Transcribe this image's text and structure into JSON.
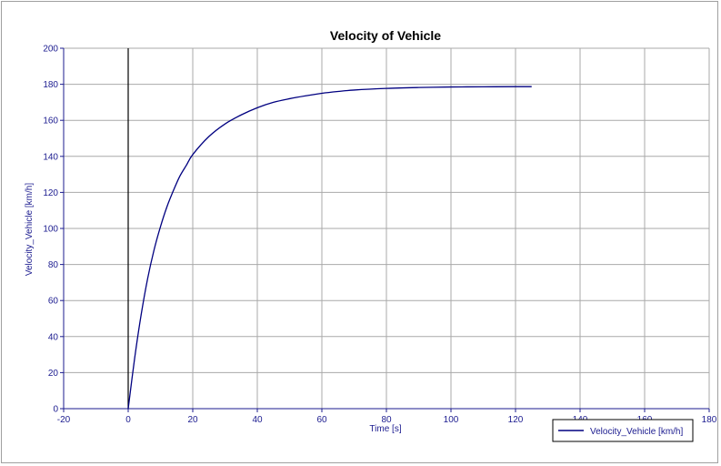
{
  "chart_data": {
    "type": "line",
    "title": "Velocity of Vehicle",
    "xlabel": "Time [s]",
    "ylabel": "Velocity_Vehicle [km/h]",
    "xlim": [
      -20,
      180
    ],
    "ylim": [
      0,
      200
    ],
    "xticks": [
      -20,
      0,
      20,
      40,
      60,
      80,
      100,
      120,
      140,
      160,
      180
    ],
    "yticks": [
      0,
      20,
      40,
      60,
      80,
      100,
      120,
      140,
      160,
      180,
      200
    ],
    "grid": true,
    "legend_position": "bottom-right",
    "series": [
      {
        "name": "Velocity_Vehicle [km/h]",
        "color": "#000080",
        "x": [
          0,
          2,
          4,
          6,
          8,
          10,
          12,
          14,
          16,
          18,
          20,
          25,
          30,
          35,
          40,
          45,
          50,
          55,
          60,
          65,
          70,
          80,
          90,
          100,
          110,
          120,
          125
        ],
        "y": [
          0,
          28,
          52,
          72,
          88,
          101,
          112,
          121,
          129,
          135,
          141,
          151,
          158,
          163,
          167,
          170,
          172,
          173.6,
          175,
          176,
          176.8,
          177.7,
          178.2,
          178.5,
          178.6,
          178.7,
          178.7
        ]
      }
    ],
    "vertical_marker": {
      "x": 0,
      "color": "#000000"
    }
  }
}
